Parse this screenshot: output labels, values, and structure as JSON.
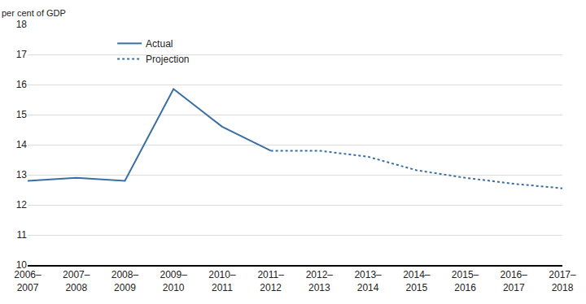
{
  "chart_data": {
    "type": "line",
    "ylabel": "per cent of GDP",
    "categories": [
      "2006–2007",
      "2007–2008",
      "2008–2009",
      "2009–2010",
      "2010–2011",
      "2011–2012",
      "2012–2013",
      "2013–2014",
      "2014–2015",
      "2015–2016",
      "2016–2017",
      "2017–2018"
    ],
    "series": [
      {
        "name": "Actual",
        "color": "#3a6ea5",
        "line_style": "solid",
        "values": [
          12.8,
          12.9,
          12.8,
          15.85,
          14.6,
          13.8,
          null,
          null,
          null,
          null,
          null,
          null
        ]
      },
      {
        "name": "Projection",
        "color": "#3a6ea5",
        "line_style": "dot",
        "values": [
          null,
          null,
          null,
          null,
          null,
          13.8,
          13.8,
          13.6,
          13.15,
          12.9,
          12.7,
          12.55
        ]
      }
    ],
    "ylim": [
      10,
      18
    ],
    "yticks": [
      10,
      11,
      12,
      13,
      14,
      15,
      16,
      17,
      18
    ],
    "grid": true,
    "legend": "top"
  }
}
